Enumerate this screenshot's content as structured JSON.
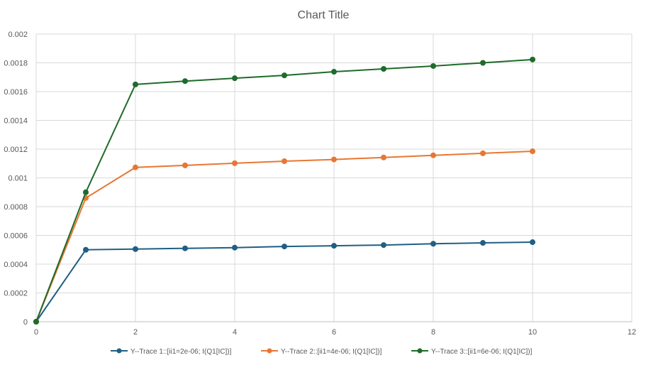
{
  "chart_data": {
    "type": "scatter",
    "title": "Chart Title",
    "xlabel": "",
    "ylabel": "",
    "xlim": [
      0,
      12
    ],
    "ylim": [
      0,
      0.002
    ],
    "x_ticks": [
      "0",
      "2",
      "4",
      "6",
      "8",
      "10",
      "12"
    ],
    "y_ticks": [
      "0",
      "0.0002",
      "0.0004",
      "0.0006",
      "0.0008",
      "0.001",
      "0.0012",
      "0.0014",
      "0.0016",
      "0.0018",
      "0.002"
    ],
    "grid": true,
    "legend_position": "bottom",
    "x": [
      0,
      1,
      2,
      3,
      4,
      5,
      6,
      7,
      8,
      9,
      10
    ],
    "series": [
      {
        "name": "Y--Trace 1::[ii1=2e-06; I(Q1[IC])]",
        "color": "#1f5f84",
        "values": [
          0,
          0.0005,
          0.000505,
          0.00051,
          0.000515,
          0.000523,
          0.000528,
          0.000533,
          0.000542,
          0.000548,
          0.000553
        ]
      },
      {
        "name": "Y--Trace 2::[ii1=4e-06; I(Q1[IC])]",
        "color": "#e87733",
        "values": [
          0,
          0.00086,
          0.001073,
          0.001087,
          0.001102,
          0.001116,
          0.001128,
          0.001142,
          0.001157,
          0.001171,
          0.001185
        ]
      },
      {
        "name": "Y--Trace 3::[ii1=6e-06; I(Q1[IC])]",
        "color": "#1e6b2a",
        "values": [
          0,
          0.0009,
          0.00165,
          0.001673,
          0.001693,
          0.001713,
          0.001738,
          0.001758,
          0.001778,
          0.0018,
          0.001823
        ]
      }
    ]
  }
}
